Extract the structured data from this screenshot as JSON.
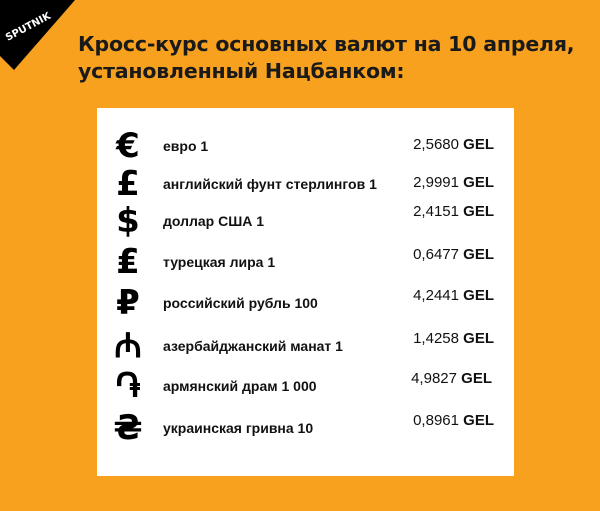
{
  "logo": {
    "text": "SPUTNIK"
  },
  "title": {
    "line1": "Кросс-курс основных валют на 10 апреля,",
    "line2": "установленный Нацбанком:"
  },
  "colors": {
    "background": "#f7a11f",
    "panel": "#ffffff",
    "text": "#111111"
  },
  "rows": [
    {
      "icon": "euro-icon",
      "symbol": "€",
      "label": "евро 1",
      "value": "2,5680",
      "unit": "GEL"
    },
    {
      "icon": "pound-icon",
      "symbol": "£",
      "label": "английский фунт стерлингов 1",
      "value": "2,9991",
      "unit": "GEL"
    },
    {
      "icon": "dollar-icon",
      "symbol": "$",
      "label": "доллар США 1",
      "value": "2,4151",
      "unit": "GEL"
    },
    {
      "icon": "lira-icon",
      "symbol": "₤",
      "label": "турецкая лира 1",
      "value": "0,6477",
      "unit": "GEL"
    },
    {
      "icon": "ruble-icon",
      "symbol": "₽",
      "label": "российский рубль 100",
      "value": "4,2441",
      "unit": "GEL"
    },
    {
      "icon": "manat-icon",
      "symbol": "₼",
      "label": "азербайджанский манат 1",
      "value": "1,4258",
      "unit": "GEL"
    },
    {
      "icon": "dram-icon",
      "symbol": "֏",
      "label": "армянский драм 1 000",
      "value": "4,9827",
      "unit": "GEL"
    },
    {
      "icon": "hryvnia-icon",
      "symbol": "₴",
      "label": "украинская гривна 10",
      "value": "0,8961",
      "unit": "GEL"
    }
  ]
}
